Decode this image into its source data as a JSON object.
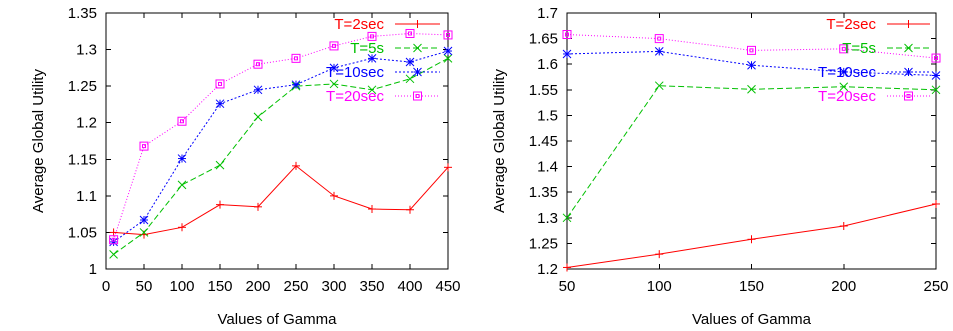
{
  "chart_data": [
    {
      "type": "line",
      "xlabel": "Values of Gamma",
      "ylabel": "Average Global Utility",
      "xlim": [
        0,
        450
      ],
      "ylim": [
        1,
        1.35
      ],
      "xticks": [
        0,
        50,
        100,
        150,
        200,
        250,
        300,
        350,
        400,
        450
      ],
      "yticks": [
        1,
        1.05,
        1.1,
        1.15,
        1.2,
        1.25,
        1.3,
        1.35
      ],
      "xtick_labels": [
        "0",
        "50",
        "100",
        "150",
        "200",
        "250",
        "300",
        "350",
        "400",
        "450"
      ],
      "ytick_labels": [
        "1",
        "1.05",
        "1.1",
        "1.15",
        "1.2",
        "1.25",
        "1.3",
        "1.35"
      ],
      "legend_position": "top-right",
      "grid": false,
      "series": [
        {
          "name": "T=2sec",
          "color": "#ff0000",
          "marker": "plus",
          "dash": "",
          "x": [
            10,
            50,
            100,
            150,
            200,
            250,
            300,
            350,
            400,
            450
          ],
          "y": [
            1.05,
            1.047,
            1.057,
            1.088,
            1.085,
            1.141,
            1.1,
            1.082,
            1.081,
            1.139
          ]
        },
        {
          "name": "T=5s",
          "color": "#00c000",
          "marker": "x",
          "dash": "6,3",
          "x": [
            10,
            50,
            100,
            150,
            200,
            250,
            300,
            350,
            400,
            450
          ],
          "y": [
            1.02,
            1.05,
            1.115,
            1.142,
            1.208,
            1.25,
            1.253,
            1.245,
            1.26,
            1.288
          ]
        },
        {
          "name": "T=10sec",
          "color": "#0000ff",
          "marker": "star",
          "dash": "2,2",
          "x": [
            10,
            50,
            100,
            150,
            200,
            250,
            300,
            350,
            400,
            450
          ],
          "y": [
            1.037,
            1.067,
            1.151,
            1.226,
            1.245,
            1.252,
            1.275,
            1.288,
            1.283,
            1.298
          ]
        },
        {
          "name": "T=20sec",
          "color": "#ff00ff",
          "marker": "box",
          "dash": "1,2",
          "x": [
            10,
            50,
            100,
            150,
            200,
            250,
            300,
            350,
            400,
            450
          ],
          "y": [
            1.04,
            1.168,
            1.202,
            1.253,
            1.28,
            1.288,
            1.305,
            1.318,
            1.322,
            1.32
          ]
        }
      ]
    },
    {
      "type": "line",
      "xlabel": "Values of Gamma",
      "ylabel": "Average Global Utility",
      "xlim": [
        50,
        250
      ],
      "ylim": [
        1.2,
        1.7
      ],
      "xticks": [
        50,
        100,
        150,
        200,
        250
      ],
      "yticks": [
        1.2,
        1.25,
        1.3,
        1.35,
        1.4,
        1.45,
        1.5,
        1.55,
        1.6,
        1.65,
        1.7
      ],
      "xtick_labels": [
        "50",
        "100",
        "150",
        "200",
        "250"
      ],
      "ytick_labels": [
        "1.2",
        "1.25",
        "1.3",
        "1.35",
        "1.4",
        "1.45",
        "1.5",
        "1.55",
        "1.6",
        "1.65",
        "1.7"
      ],
      "legend_position": "top-right",
      "grid": false,
      "series": [
        {
          "name": "T=2sec",
          "color": "#ff0000",
          "marker": "plus",
          "dash": "",
          "x": [
            50,
            100,
            150,
            200,
            250
          ],
          "y": [
            1.203,
            1.229,
            1.258,
            1.284,
            1.327
          ]
        },
        {
          "name": "T=5s",
          "color": "#00c000",
          "marker": "x",
          "dash": "6,3",
          "x": [
            50,
            100,
            150,
            200,
            250
          ],
          "y": [
            1.3,
            1.558,
            1.551,
            1.556,
            1.55
          ]
        },
        {
          "name": "T=10sec",
          "color": "#0000ff",
          "marker": "star",
          "dash": "2,2",
          "x": [
            50,
            100,
            150,
            200,
            250
          ],
          "y": [
            1.62,
            1.625,
            1.598,
            1.585,
            1.578
          ]
        },
        {
          "name": "T=20sec",
          "color": "#ff00ff",
          "marker": "box",
          "dash": "1,2",
          "x": [
            50,
            100,
            150,
            200,
            250
          ],
          "y": [
            1.658,
            1.65,
            1.627,
            1.63,
            1.612
          ]
        }
      ]
    }
  ]
}
